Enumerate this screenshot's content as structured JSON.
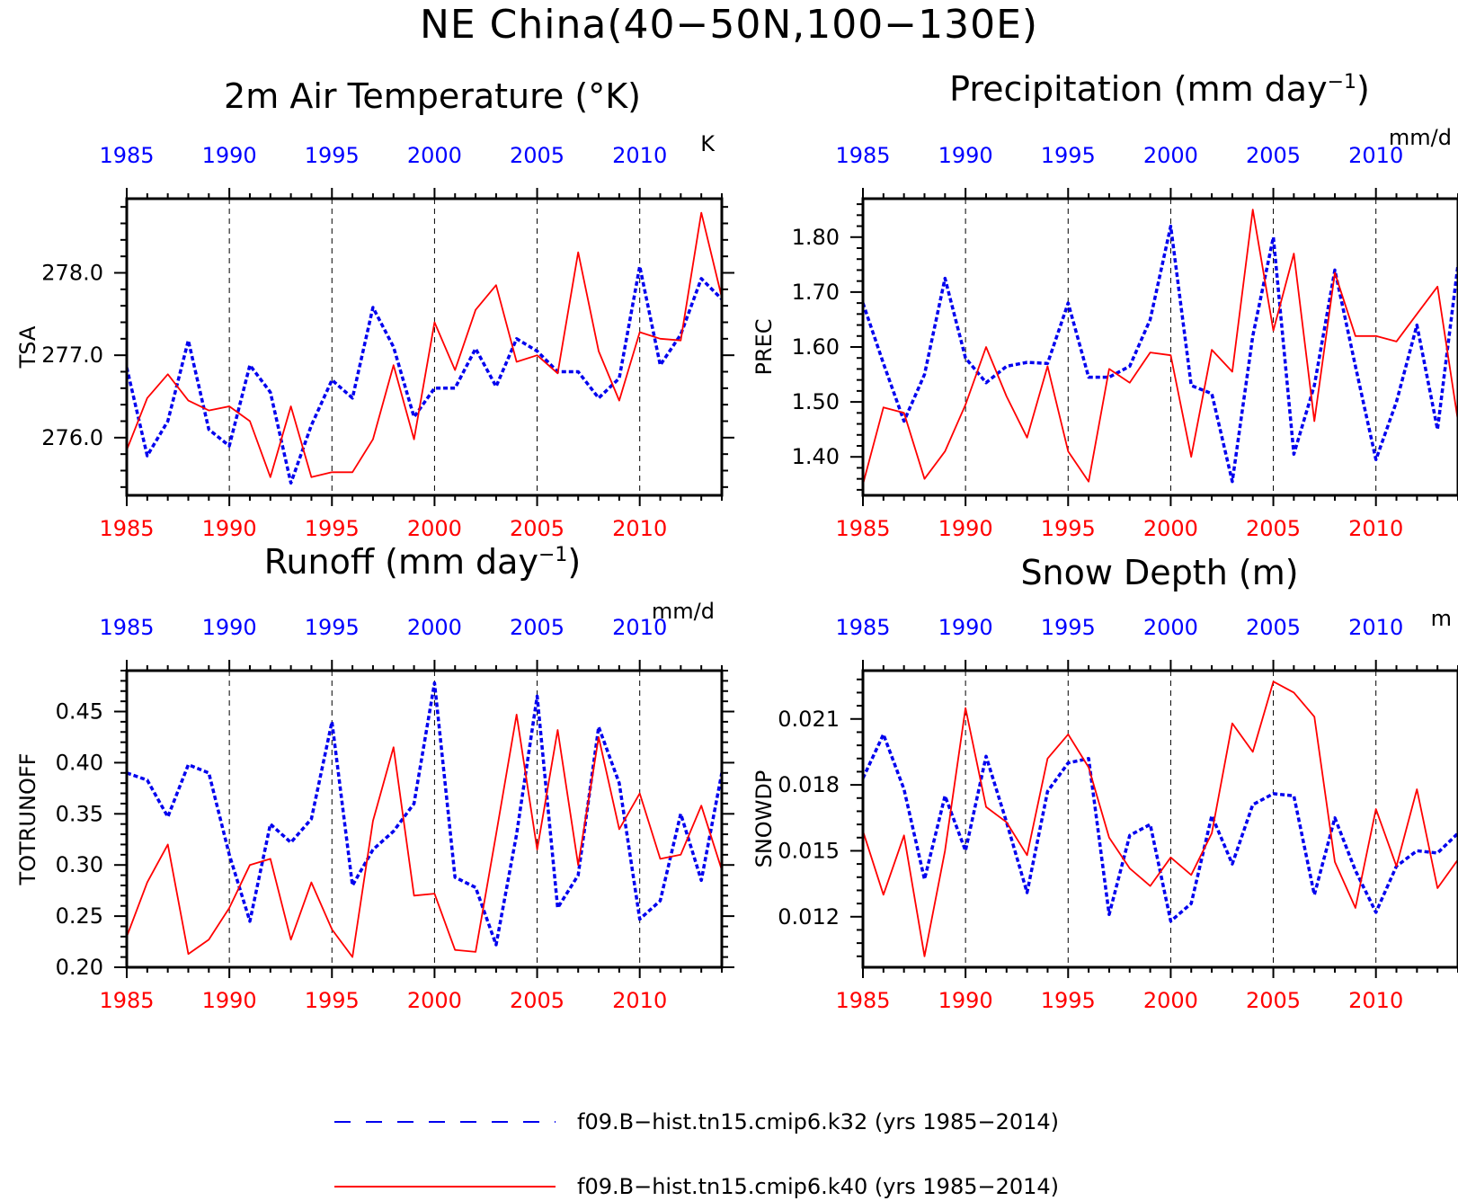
{
  "page": {
    "title": "NE China(40−50N,100−130E)"
  },
  "colors": {
    "k32": "#0000ee",
    "k40": "#ff0000",
    "top_axis": "#0000ff",
    "bottom_axis": "#ff0000"
  },
  "legend": [
    {
      "label": "f09.B−hist.tn15.cmip6.k32 (yrs 1985−2014)",
      "color": "#0000ee",
      "style": "dashed"
    },
    {
      "label": "f09.B−hist.tn15.cmip6.k40 (yrs 1985−2014)",
      "color": "#ff0000",
      "style": "solid"
    }
  ],
  "chart_data": [
    {
      "type": "line",
      "title": "2m Air Temperature (°K)",
      "title_sup": "",
      "title_suffix": "",
      "unit": "K",
      "ylabel": "TSA",
      "xlim": [
        1985,
        2014
      ],
      "ylim": [
        275.3,
        278.9
      ],
      "xticks": [
        1985,
        1990,
        1995,
        2000,
        2005,
        2010
      ],
      "xtick_labels": [
        "1985",
        "1990",
        "1995",
        "2000",
        "2005",
        "2010"
      ],
      "yticks": [
        276.0,
        277.0,
        278.0
      ],
      "ytick_labels": [
        "276.0",
        "277.0",
        "278.0"
      ],
      "yminor_step": 0.2,
      "vgrid": "dashed",
      "x": [
        1985,
        1986,
        1987,
        1988,
        1989,
        1990,
        1991,
        1992,
        1993,
        1994,
        1995,
        1996,
        1997,
        1998,
        1999,
        2000,
        2001,
        2002,
        2003,
        2004,
        2005,
        2006,
        2007,
        2008,
        2009,
        2010,
        2011,
        2012,
        2013,
        2014
      ],
      "series": [
        {
          "name": "f09.B−hist.tn15.cmip6.k32 (yrs 1985−2014)",
          "style": "dashed",
          "values": [
            276.85,
            275.78,
            276.2,
            277.18,
            276.1,
            275.9,
            276.88,
            276.55,
            275.45,
            276.15,
            276.7,
            276.48,
            277.58,
            277.1,
            276.25,
            276.6,
            276.6,
            277.08,
            276.62,
            277.2,
            277.05,
            276.8,
            276.8,
            276.48,
            276.72,
            278.08,
            276.88,
            277.25,
            277.93,
            277.68
          ]
        },
        {
          "name": "f09.B−hist.tn15.cmip6.k40 (yrs 1985−2014)",
          "style": "solid",
          "values": [
            275.85,
            276.48,
            276.77,
            276.45,
            276.33,
            276.38,
            276.2,
            275.52,
            276.38,
            275.52,
            275.58,
            275.58,
            275.98,
            276.88,
            275.98,
            277.4,
            276.82,
            277.55,
            277.85,
            276.92,
            277.0,
            276.78,
            278.25,
            277.05,
            276.45,
            277.28,
            277.2,
            277.18,
            278.73,
            277.7
          ]
        }
      ]
    },
    {
      "type": "line",
      "title": "Precipitation (mm day",
      "title_sup": "−1",
      "title_suffix": ")",
      "unit": "mm/d",
      "ylabel": "PREC",
      "xlim": [
        1985,
        2014
      ],
      "ylim": [
        1.33,
        1.87
      ],
      "xticks": [
        1985,
        1990,
        1995,
        2000,
        2005,
        2010
      ],
      "xtick_labels": [
        "1985",
        "1990",
        "1995",
        "2000",
        "2005",
        "2010"
      ],
      "yticks": [
        1.4,
        1.5,
        1.6,
        1.7,
        1.8
      ],
      "ytick_labels": [
        "1.40",
        "1.50",
        "1.60",
        "1.70",
        "1.80"
      ],
      "yminor_step": 0.02,
      "vgrid": "dashed",
      "x": [
        1985,
        1986,
        1987,
        1988,
        1989,
        1990,
        1991,
        1992,
        1993,
        1994,
        1995,
        1996,
        1997,
        1998,
        1999,
        2000,
        2001,
        2002,
        2003,
        2004,
        2005,
        2006,
        2007,
        2008,
        2009,
        2010,
        2011,
        2012,
        2013,
        2014
      ],
      "series": [
        {
          "name": "f09.B−hist.tn15.cmip6.k32 (yrs 1985−2014)",
          "style": "dashed",
          "values": [
            1.68,
            1.57,
            1.465,
            1.55,
            1.725,
            1.58,
            1.535,
            1.565,
            1.572,
            1.57,
            1.68,
            1.545,
            1.545,
            1.565,
            1.65,
            1.82,
            1.53,
            1.515,
            1.355,
            1.62,
            1.8,
            1.405,
            1.53,
            1.74,
            1.565,
            1.395,
            1.5,
            1.64,
            1.45,
            1.75
          ]
        },
        {
          "name": "f09.B−hist.tn15.cmip6.k40 (yrs 1985−2014)",
          "style": "solid",
          "values": [
            1.35,
            1.49,
            1.48,
            1.36,
            1.41,
            1.495,
            1.6,
            1.51,
            1.435,
            1.565,
            1.41,
            1.355,
            1.56,
            1.535,
            1.59,
            1.585,
            1.4,
            1.595,
            1.555,
            1.85,
            1.63,
            1.77,
            1.465,
            1.735,
            1.62,
            1.62,
            1.61,
            1.66,
            1.71,
            1.465
          ]
        }
      ]
    },
    {
      "type": "line",
      "title": "Runoff (mm day",
      "title_sup": "−1",
      "title_suffix": ")",
      "unit": "mm/d",
      "ylabel": "TOTRUNOFF",
      "xlim": [
        1985,
        2014
      ],
      "ylim": [
        0.2,
        0.49
      ],
      "xticks": [
        1985,
        1990,
        1995,
        2000,
        2005,
        2010
      ],
      "xtick_labels": [
        "1985",
        "1990",
        "1995",
        "2000",
        "2005",
        "2010"
      ],
      "yticks": [
        0.2,
        0.25,
        0.3,
        0.35,
        0.4,
        0.45
      ],
      "ytick_labels": [
        "0.20",
        "0.25",
        "0.30",
        "0.35",
        "0.40",
        "0.45"
      ],
      "yminor_step": 0.01,
      "vgrid": "dashed",
      "x": [
        1985,
        1986,
        1987,
        1988,
        1989,
        1990,
        1991,
        1992,
        1993,
        1994,
        1995,
        1996,
        1997,
        1998,
        1999,
        2000,
        2001,
        2002,
        2003,
        2004,
        2005,
        2006,
        2007,
        2008,
        2009,
        2010,
        2011,
        2012,
        2013,
        2014
      ],
      "series": [
        {
          "name": "f09.B−hist.tn15.cmip6.k32 (yrs 1985−2014)",
          "style": "dashed",
          "values": [
            0.39,
            0.383,
            0.347,
            0.398,
            0.39,
            0.31,
            0.245,
            0.34,
            0.322,
            0.345,
            0.44,
            0.28,
            0.315,
            0.333,
            0.36,
            0.478,
            0.288,
            0.278,
            0.222,
            0.33,
            0.465,
            0.258,
            0.29,
            0.435,
            0.38,
            0.247,
            0.265,
            0.35,
            0.285,
            0.39
          ]
        },
        {
          "name": "f09.B−hist.tn15.cmip6.k40 (yrs 1985−2014)",
          "style": "solid",
          "values": [
            0.23,
            0.283,
            0.32,
            0.213,
            0.227,
            0.258,
            0.3,
            0.306,
            0.227,
            0.283,
            0.237,
            0.21,
            0.343,
            0.415,
            0.27,
            0.272,
            0.217,
            0.215,
            0.33,
            0.447,
            0.315,
            0.432,
            0.3,
            0.425,
            0.335,
            0.37,
            0.306,
            0.31,
            0.358,
            0.295
          ]
        }
      ]
    },
    {
      "type": "line",
      "title": "Snow Depth (m)",
      "title_sup": "",
      "title_suffix": "",
      "unit": "m",
      "ylabel": "SNOWDP",
      "xlim": [
        1985,
        2014
      ],
      "ylim": [
        0.0097,
        0.0232
      ],
      "xticks": [
        1985,
        1990,
        1995,
        2000,
        2005,
        2010
      ],
      "xtick_labels": [
        "1985",
        "1990",
        "1995",
        "2000",
        "2005",
        "2010"
      ],
      "yticks": [
        0.012,
        0.015,
        0.018,
        0.021
      ],
      "ytick_labels": [
        "0.012",
        "0.015",
        "0.018",
        "0.021"
      ],
      "yminor_step": 0.0006,
      "vgrid": "dashed",
      "x": [
        1985,
        1986,
        1987,
        1988,
        1989,
        1990,
        1991,
        1992,
        1993,
        1994,
        1995,
        1996,
        1997,
        1998,
        1999,
        2000,
        2001,
        2002,
        2003,
        2004,
        2005,
        2006,
        2007,
        2008,
        2009,
        2010,
        2011,
        2012,
        2013,
        2014
      ],
      "series": [
        {
          "name": "f09.B−hist.tn15.cmip6.k32 (yrs 1985−2014)",
          "style": "dashed",
          "values": [
            0.0183,
            0.0203,
            0.0178,
            0.0137,
            0.0175,
            0.015,
            0.0193,
            0.0163,
            0.0131,
            0.0177,
            0.019,
            0.0192,
            0.0121,
            0.0157,
            0.0162,
            0.0118,
            0.0126,
            0.0166,
            0.0144,
            0.0171,
            0.0176,
            0.0175,
            0.013,
            0.0165,
            0.0141,
            0.0122,
            0.0143,
            0.015,
            0.0149,
            0.0158
          ]
        },
        {
          "name": "f09.B−hist.tn15.cmip6.k40 (yrs 1985−2014)",
          "style": "solid",
          "values": [
            0.0159,
            0.013,
            0.0157,
            0.0102,
            0.015,
            0.0215,
            0.017,
            0.0163,
            0.0148,
            0.0192,
            0.0203,
            0.0188,
            0.0156,
            0.0142,
            0.0134,
            0.0147,
            0.0139,
            0.0158,
            0.0208,
            0.0195,
            0.0227,
            0.0222,
            0.0211,
            0.0145,
            0.0124,
            0.0169,
            0.0143,
            0.0178,
            0.0133,
            0.0146
          ]
        }
      ]
    }
  ]
}
